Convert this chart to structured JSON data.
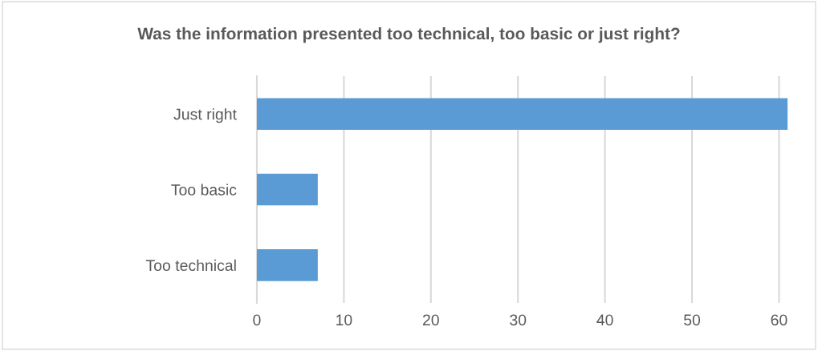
{
  "chart_data": {
    "type": "bar",
    "orientation": "horizontal",
    "title": "Was the information presented too technical, too basic or just right?",
    "categories": [
      "Just right",
      "Too basic",
      "Too technical"
    ],
    "values": [
      61,
      7,
      7
    ],
    "color": "#5b9bd5",
    "xlim": [
      0,
      61
    ],
    "xticks": [
      0,
      10,
      20,
      30,
      40,
      50,
      60
    ],
    "grid": "x",
    "legend": false
  }
}
